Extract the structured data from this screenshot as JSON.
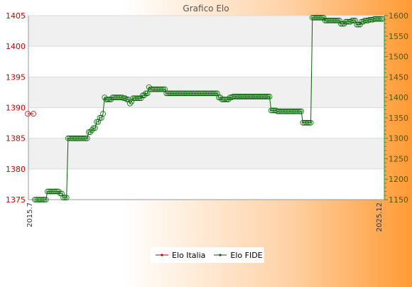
{
  "chart_data": {
    "type": "line",
    "title": "Grafico Elo",
    "ylim_left": [
      1375,
      1405
    ],
    "yticks_left": [
      "1375",
      "1380",
      "1385",
      "1390",
      "1395",
      "1400",
      "1405"
    ],
    "ylim_right": [
      1150,
      1600
    ],
    "yticks_right": [
      "1150",
      "1200",
      "1250",
      "1300",
      "1350",
      "1400",
      "1450",
      "1500",
      "1550",
      "1600"
    ],
    "grid": "horizontal",
    "legend_position": "bottom-center",
    "xtick_labels": [
      "2015.7",
      "2025.12"
    ],
    "series": [
      {
        "name": "Elo Italia",
        "axis": "left",
        "color": "#cc0000",
        "values": [
          1389,
          1389
        ]
      },
      {
        "name": "Elo FIDE",
        "axis": "right",
        "color": "#006600",
        "values": [
          1150,
          1150,
          1150,
          1150,
          1150,
          1150,
          1150,
          1150,
          1170,
          1170,
          1170,
          1170,
          1170,
          1170,
          1170,
          1170,
          1165,
          1165,
          1155,
          1155,
          1155,
          1300,
          1300,
          1300,
          1300,
          1300,
          1300,
          1300,
          1300,
          1300,
          1300,
          1300,
          1300,
          1300,
          1315,
          1315,
          1320,
          1325,
          1325,
          1340,
          1340,
          1350,
          1350,
          1360,
          1400,
          1395,
          1395,
          1395,
          1395,
          1400,
          1400,
          1400,
          1400,
          1400,
          1400,
          1400,
          1398,
          1398,
          1395,
          1395,
          1385,
          1390,
          1398,
          1398,
          1398,
          1398,
          1398,
          1398,
          1405,
          1405,
          1410,
          1410,
          1425,
          1420,
          1420,
          1420,
          1420,
          1420,
          1420,
          1420,
          1420,
          1420,
          1420,
          1410,
          1410,
          1410,
          1410,
          1410,
          1410,
          1410,
          1410,
          1410,
          1410,
          1410,
          1410,
          1410,
          1410,
          1410,
          1410,
          1410,
          1410,
          1410,
          1410,
          1410,
          1410,
          1410,
          1410,
          1410,
          1410,
          1410,
          1410,
          1410,
          1410,
          1410,
          1410,
          1410,
          1400,
          1400,
          1395,
          1395,
          1395,
          1395,
          1395,
          1400,
          1400,
          1402,
          1402,
          1402,
          1402,
          1402,
          1402,
          1402,
          1402,
          1402,
          1402,
          1402,
          1402,
          1402,
          1402,
          1402,
          1402,
          1402,
          1402,
          1402,
          1402,
          1402,
          1402,
          1402,
          1402,
          1368,
          1368,
          1368,
          1368,
          1366,
          1366,
          1366,
          1366,
          1366,
          1366,
          1366,
          1366,
          1366,
          1366,
          1366,
          1366,
          1366,
          1366,
          1366,
          1366,
          1338,
          1338,
          1338,
          1338,
          1338,
          1338,
          1595,
          1595,
          1595,
          1595,
          1595,
          1595,
          1595,
          1595,
          1588,
          1588,
          1588,
          1588,
          1588,
          1588,
          1588,
          1588,
          1588,
          1588,
          1580,
          1580,
          1580,
          1585,
          1585,
          1585,
          1585,
          1588,
          1588,
          1588,
          1578,
          1578,
          1578,
          1585,
          1585,
          1588,
          1588,
          1588,
          1590,
          1590,
          1590,
          1592,
          1592,
          1592,
          1592,
          1592,
          1592
        ]
      }
    ]
  }
}
